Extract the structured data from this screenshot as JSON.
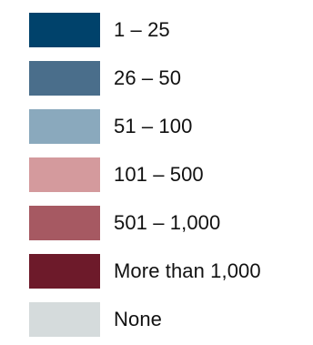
{
  "legend": {
    "items": [
      {
        "label": "1 – 25",
        "color": "#00426b"
      },
      {
        "label": "26 – 50",
        "color": "#4a6e8b"
      },
      {
        "label": "51 – 100",
        "color": "#8aa9bd"
      },
      {
        "label": "101 – 500",
        "color": "#d49a9d"
      },
      {
        "label": "501 – 1,000",
        "color": "#a65962"
      },
      {
        "label": "More than 1,000",
        "color": "#6d1a2a"
      },
      {
        "label": "None",
        "color": "#d5dbdc"
      }
    ]
  }
}
